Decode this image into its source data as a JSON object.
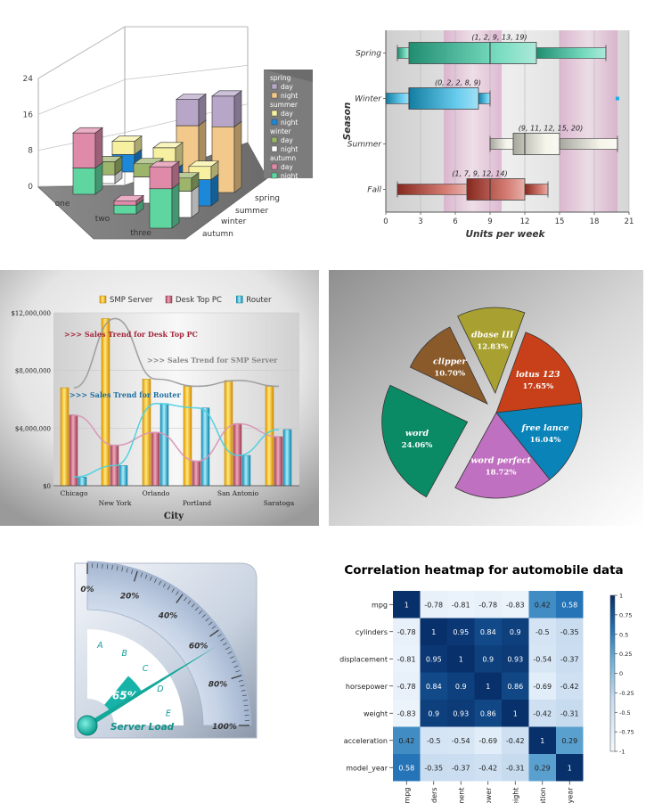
{
  "chart_data": [
    {
      "type": "bar",
      "variant": "3d-stacked",
      "categories": [
        "one",
        "two",
        "three"
      ],
      "depth_categories": [
        "spring",
        "summer",
        "winter",
        "autumn"
      ],
      "ylim": [
        0,
        24
      ],
      "y_ticks": [
        "0",
        "8",
        "16",
        "24"
      ],
      "legend": [
        {
          "group": "spring",
          "items": [
            {
              "name": "day",
              "color": "#b8a6c8"
            },
            {
              "name": "night",
              "color": "#f2c98a"
            }
          ]
        },
        {
          "group": "summer",
          "items": [
            {
              "name": "day",
              "color": "#f6f0a0"
            },
            {
              "name": "night",
              "color": "#1e88d8"
            }
          ]
        },
        {
          "group": "winter",
          "items": [
            {
              "name": "day",
              "color": "#9db56a"
            },
            {
              "name": "night",
              "color": "#ffffff"
            }
          ]
        },
        {
          "group": "autumn",
          "items": [
            {
              "name": "day",
              "color": "#e08aaa"
            },
            {
              "name": "night",
              "color": "#5fd6a0"
            }
          ]
        }
      ],
      "stacks": [
        {
          "category": "one",
          "season": "spring",
          "values": [
            0,
            0
          ]
        },
        {
          "category": "one",
          "season": "summer",
          "values": [
            4,
            3
          ]
        },
        {
          "category": "one",
          "season": "winter",
          "values": [
            2,
            3
          ]
        },
        {
          "category": "one",
          "season": "autumn",
          "values": [
            6,
            8
          ]
        },
        {
          "category": "two",
          "season": "spring",
          "values": [
            12,
            6
          ]
        },
        {
          "category": "two",
          "season": "summer",
          "values": [
            5,
            5
          ]
        },
        {
          "category": "two",
          "season": "winter",
          "values": [
            6,
            3
          ]
        },
        {
          "category": "two",
          "season": "autumn",
          "values": [
            2,
            1
          ]
        },
        {
          "category": "three",
          "season": "spring",
          "values": [
            15,
            7
          ]
        },
        {
          "category": "three",
          "season": "summer",
          "values": [
            6,
            3
          ]
        },
        {
          "category": "three",
          "season": "winter",
          "values": [
            6,
            3
          ]
        },
        {
          "category": "three",
          "season": "autumn",
          "values": [
            9,
            5
          ]
        }
      ]
    },
    {
      "type": "box",
      "orientation": "horizontal",
      "xlabel": "Units per week",
      "ylabel": "Season",
      "xlim": [
        0,
        21
      ],
      "x_ticks": [
        0,
        3,
        6,
        9,
        12,
        15,
        18,
        21
      ],
      "categories": [
        "Spring",
        "Winter",
        "Summer",
        "Fall"
      ],
      "boxes": [
        {
          "name": "Spring",
          "stats": [
            1,
            2,
            9,
            13,
            19
          ],
          "label": "(1, 2, 9, 13, 19)",
          "color": "#2fc9a0"
        },
        {
          "name": "Winter",
          "stats": [
            0,
            2,
            2,
            8,
            9
          ],
          "label": "(0, 2, 2, 8, 9)",
          "color": "#1ab2e6",
          "outliers": [
            20
          ]
        },
        {
          "name": "Summer",
          "stats": [
            9,
            11,
            12,
            15,
            20
          ],
          "label": "(9, 11, 12, 15, 20)",
          "color": "#f0efe0"
        },
        {
          "name": "Fall",
          "stats": [
            1,
            7,
            9,
            12,
            14
          ],
          "label": "(1, 7, 9, 12, 14)",
          "color": "#c0392b"
        }
      ],
      "bands": [
        {
          "from": 5,
          "to": 10
        },
        {
          "from": 15,
          "to": 20
        }
      ]
    },
    {
      "type": "bar",
      "xlabel": "City",
      "categories": [
        "Chicago",
        "New York",
        "Orlando",
        "Portland",
        "San Antonio",
        "Saratoga"
      ],
      "ylim": [
        0,
        12000000
      ],
      "y_ticks": [
        "$0",
        "$4,000,000",
        "$8,000,000",
        "$12,000,000"
      ],
      "legend_position": "top",
      "series": [
        {
          "name": "SMP Server",
          "color": "#f5b400",
          "values": [
            6800000,
            11600000,
            7400000,
            6900000,
            7300000,
            6900000
          ]
        },
        {
          "name": "Desk Top PC",
          "color": "#c8667a",
          "values": [
            4900000,
            2800000,
            3700000,
            1700000,
            4300000,
            3400000
          ]
        },
        {
          "name": "Router",
          "color": "#2cb4d8",
          "values": [
            600000,
            1400000,
            5700000,
            5400000,
            2100000,
            3900000
          ]
        }
      ],
      "annotations": [
        {
          "text": ">>> Sales Trend for Desk Top PC",
          "color": "#a3283c"
        },
        {
          "text": ">>> Sales Trend for SMP Server",
          "color": "#888888"
        },
        {
          "text": ">>> Sales Trend for Router",
          "color": "#1f6fa0"
        }
      ]
    },
    {
      "type": "pie",
      "variant": "exploded",
      "slices": [
        {
          "name": "lotus 123",
          "value": 17.65,
          "label": "17.65%",
          "color": "#c8401a"
        },
        {
          "name": "free lance",
          "value": 16.04,
          "label": "16.04%",
          "color": "#0a84b8"
        },
        {
          "name": "word perfect",
          "value": 18.72,
          "label": "18.72%",
          "color": "#c070c0"
        },
        {
          "name": "word",
          "value": 24.06,
          "label": "24.06%",
          "color": "#0b8a66"
        },
        {
          "name": "clipper",
          "value": 10.7,
          "label": "10.70%",
          "color": "#8b5a2b"
        },
        {
          "name": "dbase III",
          "value": 12.83,
          "label": "12.83%",
          "color": "#a8a030"
        }
      ]
    },
    {
      "type": "gauge",
      "value": 65,
      "value_label": "65%",
      "title": "Server Load",
      "ticks": [
        "0%",
        "20%",
        "40%",
        "60%",
        "80%",
        "100%"
      ],
      "bands": [
        "A",
        "B",
        "C",
        "D",
        "E"
      ]
    },
    {
      "type": "heatmap",
      "title": "Correlation heatmap for automobile data",
      "labels": [
        "mpg",
        "cylinders",
        "displacement",
        "horsepower",
        "weight",
        "acceleration",
        "model_year"
      ],
      "matrix": [
        [
          1,
          -0.78,
          -0.81,
          -0.78,
          -0.83,
          0.42,
          0.58
        ],
        [
          -0.78,
          1,
          0.95,
          0.84,
          0.9,
          -0.5,
          -0.35
        ],
        [
          -0.81,
          0.95,
          1,
          0.9,
          0.93,
          -0.54,
          -0.37
        ],
        [
          -0.78,
          0.84,
          0.9,
          1,
          0.86,
          -0.69,
          -0.42
        ],
        [
          -0.83,
          0.9,
          0.93,
          0.86,
          1,
          -0.42,
          -0.31
        ],
        [
          0.42,
          -0.5,
          -0.54,
          -0.69,
          -0.42,
          1,
          0.29
        ],
        [
          0.58,
          -0.35,
          -0.37,
          -0.42,
          -0.31,
          0.29,
          1
        ]
      ],
      "colorbar_ticks": [
        "1",
        "0.75",
        "0.5",
        "0.25",
        "0",
        "-0.25",
        "-0.5",
        "-0.75",
        "-1"
      ],
      "colorbar_values": [
        1,
        0.75,
        0.5,
        0.25,
        0,
        -0.25,
        -0.5,
        -0.75,
        -1
      ]
    }
  ]
}
